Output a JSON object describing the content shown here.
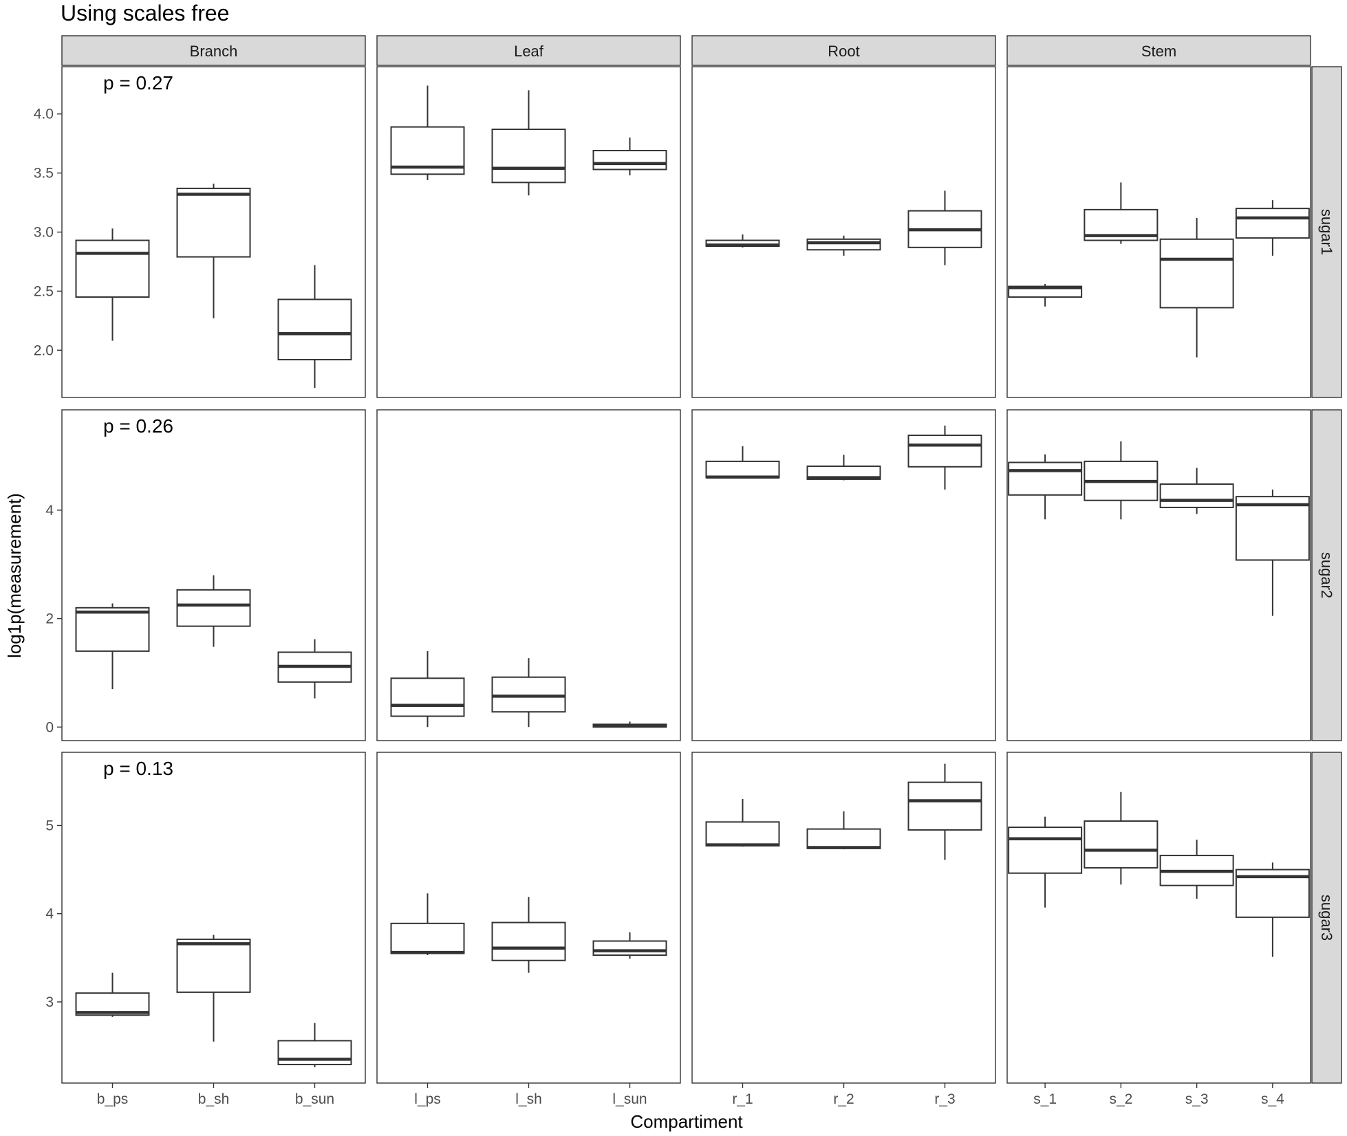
{
  "chart_data": {
    "type": "box",
    "title": "Using scales free",
    "xlabel": "Compartiment",
    "ylabel": "log1p(measurement)",
    "facet_cols": [
      "Branch",
      "Leaf",
      "Root",
      "Stem"
    ],
    "facet_rows": [
      "sugar1",
      "sugar2",
      "sugar3"
    ],
    "categories": {
      "Branch": [
        "b_ps",
        "b_sh",
        "b_sun"
      ],
      "Leaf": [
        "l_ps",
        "l_sh",
        "l_sun"
      ],
      "Root": [
        "r_1",
        "r_2",
        "r_3"
      ],
      "Stem": [
        "s_1",
        "s_2",
        "s_3",
        "s_4"
      ]
    },
    "rows": [
      {
        "name": "sugar1",
        "annotation": "p = 0.27",
        "ylim": [
          1.6,
          4.4
        ],
        "yticks": [
          "2.0",
          "2.5",
          "3.0",
          "3.5",
          "4.0"
        ],
        "boxes": {
          "Branch": [
            {
              "min": 2.08,
              "q1": 2.45,
              "median": 2.82,
              "q3": 2.93,
              "max": 3.03
            },
            {
              "min": 2.27,
              "q1": 2.79,
              "median": 3.32,
              "q3": 3.37,
              "max": 3.41
            },
            {
              "min": 1.68,
              "q1": 1.92,
              "median": 2.14,
              "q3": 2.43,
              "max": 2.72
            }
          ],
          "Leaf": [
            {
              "min": 3.44,
              "q1": 3.49,
              "median": 3.55,
              "q3": 3.89,
              "max": 4.24
            },
            {
              "min": 3.31,
              "q1": 3.42,
              "median": 3.54,
              "q3": 3.87,
              "max": 4.2
            },
            {
              "min": 3.48,
              "q1": 3.53,
              "median": 3.58,
              "q3": 3.69,
              "max": 3.8
            }
          ],
          "Root": [
            {
              "min": 2.87,
              "q1": 2.88,
              "median": 2.89,
              "q3": 2.93,
              "max": 2.98
            },
            {
              "min": 2.8,
              "q1": 2.85,
              "median": 2.91,
              "q3": 2.94,
              "max": 2.97
            },
            {
              "min": 2.72,
              "q1": 2.87,
              "median": 3.02,
              "q3": 3.18,
              "max": 3.35
            }
          ],
          "Stem": [
            {
              "min": 2.37,
              "q1": 2.45,
              "median": 2.53,
              "q3": 2.54,
              "max": 2.56
            },
            {
              "min": 2.9,
              "q1": 2.93,
              "median": 2.97,
              "q3": 3.19,
              "max": 3.42
            },
            {
              "min": 1.94,
              "q1": 2.36,
              "median": 2.77,
              "q3": 2.94,
              "max": 3.12
            },
            {
              "min": 2.8,
              "q1": 2.95,
              "median": 3.12,
              "q3": 3.2,
              "max": 3.27
            }
          ]
        }
      },
      {
        "name": "sugar2",
        "annotation": "p = 0.26",
        "ylim": [
          -0.25,
          5.85
        ],
        "yticks": [
          "0",
          "2",
          "4"
        ],
        "boxes": {
          "Branch": [
            {
              "min": 0.7,
              "q1": 1.4,
              "median": 2.12,
              "q3": 2.2,
              "max": 2.28
            },
            {
              "min": 1.48,
              "q1": 1.86,
              "median": 2.25,
              "q3": 2.53,
              "max": 2.8
            },
            {
              "min": 0.53,
              "q1": 0.83,
              "median": 1.12,
              "q3": 1.38,
              "max": 1.62
            }
          ],
          "Leaf": [
            {
              "min": 0.0,
              "q1": 0.2,
              "median": 0.4,
              "q3": 0.9,
              "max": 1.4
            },
            {
              "min": 0.0,
              "q1": 0.28,
              "median": 0.57,
              "q3": 0.92,
              "max": 1.27
            },
            {
              "min": 0.0,
              "q1": 0.0,
              "median": 0.02,
              "q3": 0.05,
              "max": 0.1
            }
          ],
          "Root": [
            {
              "min": 4.6,
              "q1": 4.6,
              "median": 4.61,
              "q3": 4.9,
              "max": 5.18
            },
            {
              "min": 4.55,
              "q1": 4.57,
              "median": 4.6,
              "q3": 4.81,
              "max": 5.02
            },
            {
              "min": 4.38,
              "q1": 4.8,
              "median": 5.2,
              "q3": 5.38,
              "max": 5.56
            }
          ],
          "Stem": [
            {
              "min": 3.83,
              "q1": 4.28,
              "median": 4.73,
              "q3": 4.88,
              "max": 5.03
            },
            {
              "min": 3.83,
              "q1": 4.18,
              "median": 4.53,
              "q3": 4.9,
              "max": 5.27
            },
            {
              "min": 3.93,
              "q1": 4.05,
              "median": 4.18,
              "q3": 4.48,
              "max": 4.78
            },
            {
              "min": 2.05,
              "q1": 3.08,
              "median": 4.1,
              "q3": 4.25,
              "max": 4.38
            }
          ]
        }
      },
      {
        "name": "sugar3",
        "annotation": "p = 0.13",
        "ylim": [
          2.08,
          5.83
        ],
        "yticks": [
          "3",
          "4",
          "5"
        ],
        "boxes": {
          "Branch": [
            {
              "min": 2.83,
              "q1": 2.85,
              "median": 2.88,
              "q3": 3.1,
              "max": 3.33
            },
            {
              "min": 2.55,
              "q1": 3.11,
              "median": 3.66,
              "q3": 3.71,
              "max": 3.76
            },
            {
              "min": 2.26,
              "q1": 2.29,
              "median": 2.35,
              "q3": 2.56,
              "max": 2.76
            }
          ],
          "Leaf": [
            {
              "min": 3.53,
              "q1": 3.55,
              "median": 3.56,
              "q3": 3.89,
              "max": 4.23
            },
            {
              "min": 3.33,
              "q1": 3.47,
              "median": 3.61,
              "q3": 3.9,
              "max": 4.19
            },
            {
              "min": 3.49,
              "q1": 3.53,
              "median": 3.58,
              "q3": 3.69,
              "max": 3.79
            }
          ],
          "Root": [
            {
              "min": 4.76,
              "q1": 4.77,
              "median": 4.78,
              "q3": 5.04,
              "max": 5.3
            },
            {
              "min": 4.73,
              "q1": 4.74,
              "median": 4.75,
              "q3": 4.96,
              "max": 5.16
            },
            {
              "min": 4.61,
              "q1": 4.95,
              "median": 5.28,
              "q3": 5.49,
              "max": 5.7
            }
          ],
          "Stem": [
            {
              "min": 4.07,
              "q1": 4.46,
              "median": 4.85,
              "q3": 4.98,
              "max": 5.1
            },
            {
              "min": 4.33,
              "q1": 4.52,
              "median": 4.72,
              "q3": 5.05,
              "max": 5.38
            },
            {
              "min": 4.17,
              "q1": 4.32,
              "median": 4.48,
              "q3": 4.66,
              "max": 4.84
            },
            {
              "min": 3.51,
              "q1": 3.96,
              "median": 4.42,
              "q3": 4.5,
              "max": 4.58
            }
          ]
        }
      }
    ]
  }
}
